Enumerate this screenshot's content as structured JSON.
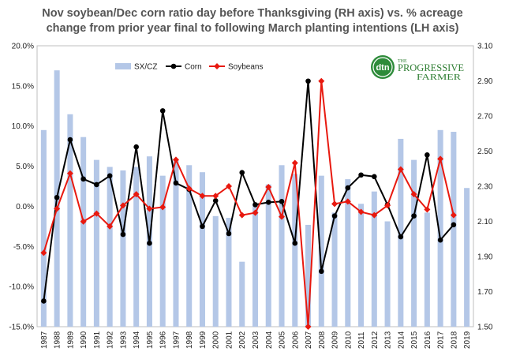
{
  "chart_data": {
    "type": "bar+line",
    "title_line1": "Nov soybean/Dec corn ratio day before Thanksgiving (RH axis)  vs. % acreage",
    "title_line2": "change from prior year final to following March planting intentions (LH axis)",
    "categories": [
      "1987",
      "1988",
      "1989",
      "1990",
      "1991",
      "1992",
      "1993",
      "1994",
      "1995",
      "1996",
      "1997",
      "1998",
      "1999",
      "2000",
      "2001",
      "2002",
      "2003",
      "2004",
      "2005",
      "2006",
      "2007",
      "2008",
      "2009",
      "2010",
      "2011",
      "2012",
      "2013",
      "2014",
      "2015",
      "2016",
      "2017",
      "2018",
      "2019"
    ],
    "left_axis": {
      "min": -0.15,
      "max": 0.2,
      "step": 0.05,
      "tick_labels": [
        "-15.0%",
        "-10.0%",
        "-5.0%",
        "0.0%",
        "5.0%",
        "10.0%",
        "15.0%",
        "20.0%"
      ]
    },
    "right_axis": {
      "min": 1.5,
      "max": 3.1,
      "step": 0.2,
      "tick_labels": [
        "1.50",
        "1.70",
        "1.90",
        "2.10",
        "2.30",
        "2.50",
        "2.70",
        "2.90",
        "3.10"
      ]
    },
    "series": [
      {
        "name": "SX/CZ",
        "kind": "bar",
        "axis": "right",
        "color": "#b4c7e7",
        "values": [
          2.62,
          2.96,
          2.71,
          2.58,
          2.45,
          2.41,
          2.39,
          2.41,
          2.47,
          2.36,
          2.45,
          2.42,
          2.38,
          2.13,
          2.12,
          1.87,
          2.2,
          2.31,
          2.42,
          2.37,
          2.08,
          2.36,
          2.15,
          2.34,
          2.2,
          2.27,
          2.1,
          2.57,
          2.45,
          2.15,
          2.62,
          2.61,
          2.29
        ]
      },
      {
        "name": "Corn",
        "kind": "line",
        "axis": "left",
        "color": "#000000",
        "values": [
          -0.118,
          0.011,
          0.083,
          0.034,
          0.027,
          0.038,
          -0.035,
          0.074,
          -0.046,
          0.119,
          0.029,
          0.021,
          -0.025,
          0.007,
          -0.034,
          0.042,
          0.002,
          0.005,
          0.006,
          -0.046,
          0.156,
          -0.081,
          -0.012,
          0.023,
          0.039,
          0.037,
          0.002,
          -0.038,
          -0.012,
          0.064,
          -0.042,
          -0.023,
          null
        ]
      },
      {
        "name": "Soybeans",
        "kind": "line",
        "axis": "left",
        "color": "#e8190f",
        "values": [
          -0.058,
          -0.003,
          0.041,
          -0.019,
          -0.009,
          -0.025,
          0.001,
          0.015,
          -0.003,
          -0.001,
          0.058,
          0.022,
          0.013,
          0.013,
          0.025,
          -0.011,
          -0.008,
          0.024,
          -0.013,
          0.054,
          -0.15,
          0.156,
          0.003,
          0.006,
          -0.007,
          -0.011,
          0.001,
          0.046,
          0.015,
          -0.004,
          0.059,
          -0.011,
          null
        ]
      }
    ],
    "legend_position": "top-left"
  },
  "logo": {
    "badge_text": "dtn",
    "brand_line1": "PROGRESSIVE",
    "brand_line2": "FARMER",
    "brand_prefix": "THE",
    "badge_color": "#2e8b3a",
    "brand_color": "#2e7d32"
  }
}
